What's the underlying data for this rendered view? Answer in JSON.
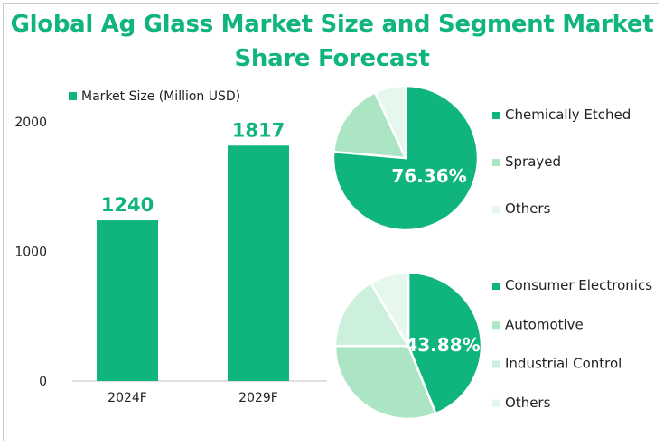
{
  "colors": {
    "primary": "#10b47e",
    "light1": "#abe5c4",
    "light2": "#cdf0dc",
    "light3": "#e6f7ee",
    "title": "#10b47e"
  },
  "chart_data": [
    {
      "type": "bar",
      "title": "Global Ag Glass Market Size and Segment Market Share Forecast",
      "legend": "Market Size (Million USD)",
      "categories": [
        "2024F",
        "2029F"
      ],
      "values": [
        1240,
        1817
      ],
      "data_labels": [
        "1240",
        "1817"
      ],
      "yticks": [
        "0",
        "1000",
        "2000"
      ],
      "ylim": [
        0,
        2000
      ],
      "grid": false,
      "legend_position": "top"
    },
    {
      "type": "pie",
      "labels": [
        "Chemically Etched",
        "Sprayed",
        "Others"
      ],
      "values": [
        76.36,
        16.7,
        6.94
      ],
      "data_label": "76.36%",
      "legend_position": "right"
    },
    {
      "type": "pie",
      "labels": [
        "Consumer Electronics",
        "Automotive",
        "Industrial Control",
        "Others"
      ],
      "values": [
        43.88,
        31.1,
        16.4,
        8.62
      ],
      "data_label": "43.88%",
      "legend_position": "right"
    }
  ]
}
